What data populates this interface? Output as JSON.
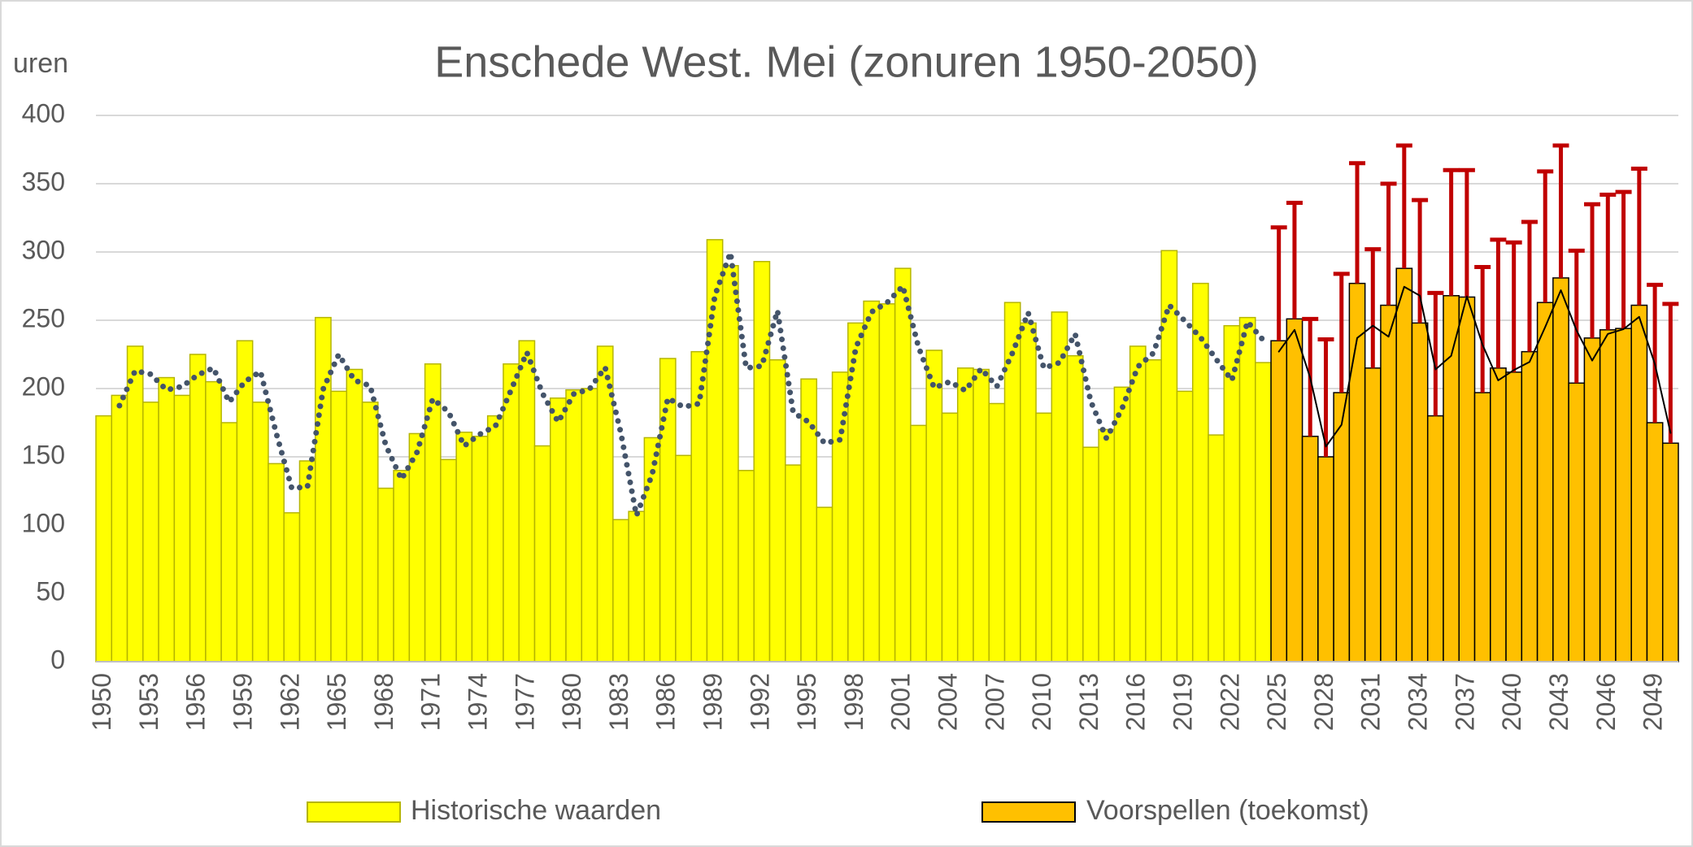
{
  "chart_data": {
    "type": "bar",
    "title": "Enschede West. Mei (zonuren 1950-2050)",
    "y_label": "uren",
    "categories": [
      "1950",
      null,
      null,
      "1953",
      null,
      null,
      "1956",
      null,
      null,
      "1959",
      null,
      null,
      "1962",
      null,
      null,
      "1965",
      null,
      null,
      "1968",
      null,
      null,
      "1971",
      null,
      null,
      "1974",
      null,
      null,
      "1977",
      null,
      null,
      "1980",
      null,
      null,
      "1983",
      null,
      null,
      "1986",
      null,
      null,
      "1989",
      null,
      null,
      "1992",
      null,
      null,
      "1995",
      null,
      null,
      "1998",
      null,
      null,
      "2001",
      null,
      null,
      "2004",
      null,
      null,
      "2007",
      null,
      null,
      "2010",
      null,
      null,
      "2013",
      null,
      null,
      "2016",
      null,
      null,
      "2019",
      null,
      null,
      "2022",
      null,
      null,
      "2025",
      null,
      null,
      "2028",
      null,
      null,
      "2031",
      null,
      null,
      "2034",
      null,
      null,
      "2037",
      null,
      null,
      "2040",
      null,
      null,
      "2043",
      null,
      null,
      "2046",
      null,
      null,
      "2049",
      null
    ],
    "ylim": [
      0,
      400
    ],
    "yticks": [
      0,
      50,
      100,
      150,
      200,
      250,
      300,
      350,
      400
    ],
    "grid": true,
    "legend": "bottom",
    "series": [
      {
        "name": "Historische waarden",
        "color": "#ffff00",
        "edge_color": "#b5b500",
        "values": [
          180,
          195,
          231,
          190,
          208,
          195,
          225,
          205,
          175,
          235,
          190,
          145,
          109,
          147,
          252,
          198,
          214,
          190,
          127,
          140,
          167,
          218,
          148,
          168,
          165,
          180,
          218,
          235,
          158,
          193,
          199,
          200,
          231,
          104,
          110,
          164,
          222,
          151,
          227,
          309,
          290,
          140,
          293,
          221,
          144,
          207,
          113,
          212,
          248,
          264,
          262,
          288,
          173,
          228,
          182,
          215,
          214,
          189,
          263,
          248,
          182,
          256,
          224,
          157,
          170,
          201,
          231,
          221,
          301,
          198,
          277,
          166,
          246,
          252,
          219,
          null,
          null,
          null,
          null,
          null,
          null,
          null,
          null,
          null,
          null,
          null,
          null,
          null,
          null,
          null,
          null,
          null,
          null,
          null,
          null,
          null,
          null,
          null,
          null,
          null,
          null
        ],
        "moving_average": [
          null,
          187.5,
          213,
          210.5,
          199,
          201.5,
          210,
          215,
          190,
          205,
          212.5,
          167.5,
          127,
          128,
          199.5,
          225,
          206,
          202,
          158.5,
          133.5,
          153.5,
          192.5,
          183,
          158,
          166.5,
          172.5,
          199,
          226.5,
          196.5,
          175.5,
          196,
          199.5,
          215.5,
          167.5,
          107,
          137,
          193,
          186.5,
          189,
          268,
          299.5,
          215,
          216.5,
          257,
          182.5,
          175.5,
          160,
          162.5,
          230,
          256,
          263,
          275,
          230.5,
          200.5,
          205,
          198.5,
          214.5,
          201.5,
          226,
          255.5,
          215,
          219,
          240,
          190.5,
          163.5,
          185.5,
          216,
          226,
          261,
          249.5,
          237.5,
          221.5,
          206,
          249,
          235.5,
          null,
          null,
          null,
          null,
          null,
          null,
          null,
          null,
          null,
          null,
          null,
          null,
          null,
          null,
          null,
          null,
          null,
          null,
          null,
          null,
          null,
          null,
          null,
          null,
          null,
          null
        ],
        "moving_average_color": "#44546a",
        "moving_average_style": "dotted"
      },
      {
        "name": "Voorspellen (toekomst)",
        "color": "#ffc000",
        "edge_color": "#000000",
        "error_color": "#c00000",
        "values": [
          null,
          null,
          null,
          null,
          null,
          null,
          null,
          null,
          null,
          null,
          null,
          null,
          null,
          null,
          null,
          null,
          null,
          null,
          null,
          null,
          null,
          null,
          null,
          null,
          null,
          null,
          null,
          null,
          null,
          null,
          null,
          null,
          null,
          null,
          null,
          null,
          null,
          null,
          null,
          null,
          null,
          null,
          null,
          null,
          null,
          null,
          null,
          null,
          null,
          null,
          null,
          null,
          null,
          null,
          null,
          null,
          null,
          null,
          null,
          null,
          null,
          null,
          null,
          null,
          null,
          null,
          null,
          null,
          null,
          null,
          null,
          null,
          null,
          null,
          null,
          235,
          251,
          165,
          150,
          197,
          277,
          215,
          261,
          288,
          248,
          180,
          268,
          267,
          197,
          215,
          212,
          227,
          263,
          281,
          204,
          237,
          243,
          244,
          261,
          175,
          160
        ],
        "errors": [
          null,
          null,
          null,
          null,
          null,
          null,
          null,
          null,
          null,
          null,
          null,
          null,
          null,
          null,
          null,
          null,
          null,
          null,
          null,
          null,
          null,
          null,
          null,
          null,
          null,
          null,
          null,
          null,
          null,
          null,
          null,
          null,
          null,
          null,
          null,
          null,
          null,
          null,
          null,
          null,
          null,
          null,
          null,
          null,
          null,
          null,
          null,
          null,
          null,
          null,
          null,
          null,
          null,
          null,
          null,
          null,
          null,
          null,
          null,
          null,
          null,
          null,
          null,
          null,
          null,
          null,
          null,
          null,
          null,
          null,
          null,
          null,
          null,
          null,
          null,
          83,
          85,
          86,
          86,
          87,
          88,
          87,
          89,
          90,
          90,
          90,
          92,
          93,
          92,
          94,
          95,
          95,
          96,
          97,
          97,
          98,
          99,
          100,
          100,
          101,
          102
        ],
        "moving_average": [
          null,
          null,
          null,
          null,
          null,
          null,
          null,
          null,
          null,
          null,
          null,
          null,
          null,
          null,
          null,
          null,
          null,
          null,
          null,
          null,
          null,
          null,
          null,
          null,
          null,
          null,
          null,
          null,
          null,
          null,
          null,
          null,
          null,
          null,
          null,
          null,
          null,
          null,
          null,
          null,
          null,
          null,
          null,
          null,
          null,
          null,
          null,
          null,
          null,
          null,
          null,
          null,
          null,
          null,
          null,
          null,
          null,
          null,
          null,
          null,
          null,
          null,
          null,
          null,
          null,
          null,
          null,
          null,
          null,
          null,
          null,
          null,
          null,
          null,
          null,
          227,
          243,
          208,
          157.5,
          173.5,
          237,
          246,
          238,
          274.5,
          268,
          214,
          224,
          267.5,
          232,
          206,
          213.5,
          219.5,
          245,
          272,
          242.5,
          220.5,
          240,
          243.5,
          252.5,
          218,
          167.5
        ],
        "moving_average_color": "#000000",
        "moving_average_style": "solid"
      }
    ]
  }
}
